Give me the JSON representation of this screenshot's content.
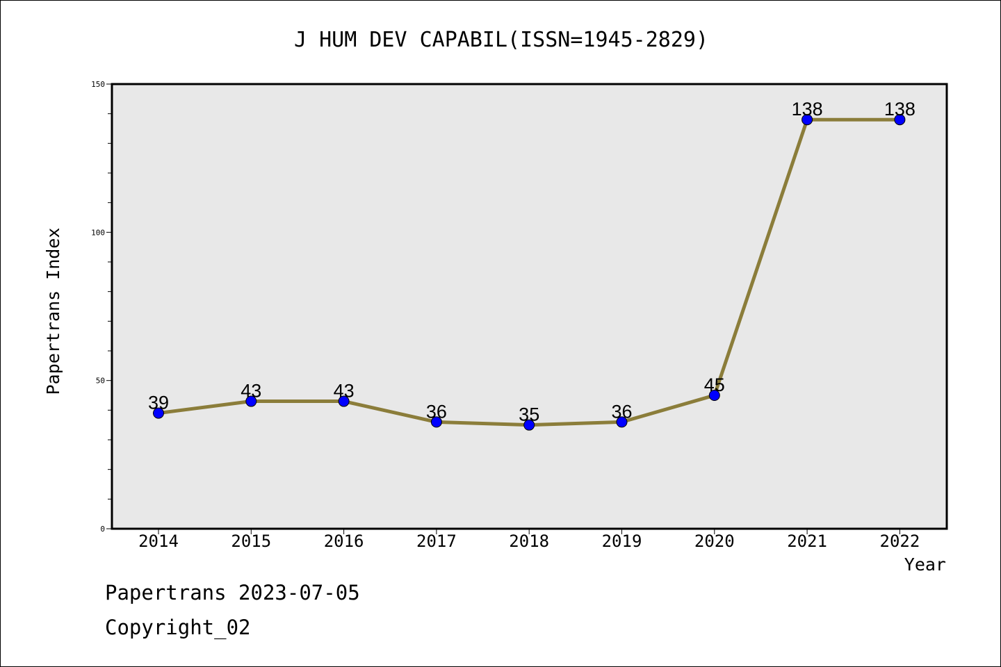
{
  "chart_data": {
    "type": "line",
    "title": "J HUM DEV CAPABIL(ISSN=1945-2829)",
    "xlabel": "Year",
    "ylabel": "Papertrans Index",
    "categories": [
      "2014",
      "2015",
      "2016",
      "2017",
      "2018",
      "2019",
      "2020",
      "2021",
      "2022"
    ],
    "values": [
      39,
      43,
      43,
      36,
      35,
      36,
      45,
      138,
      138
    ],
    "data_labels": [
      "39",
      "43",
      "43",
      "36",
      "35",
      "36",
      "45",
      "138",
      "138"
    ],
    "ylim": [
      0,
      150
    ],
    "yticks": [
      0,
      50,
      100,
      150
    ],
    "grid": false,
    "line_color": "#8b7d3a",
    "marker_color": "#0000ff",
    "plot_background": "#e8e8e8"
  },
  "footer": {
    "line1": "Papertrans 2023-07-05",
    "line2": "Copyright_02"
  }
}
